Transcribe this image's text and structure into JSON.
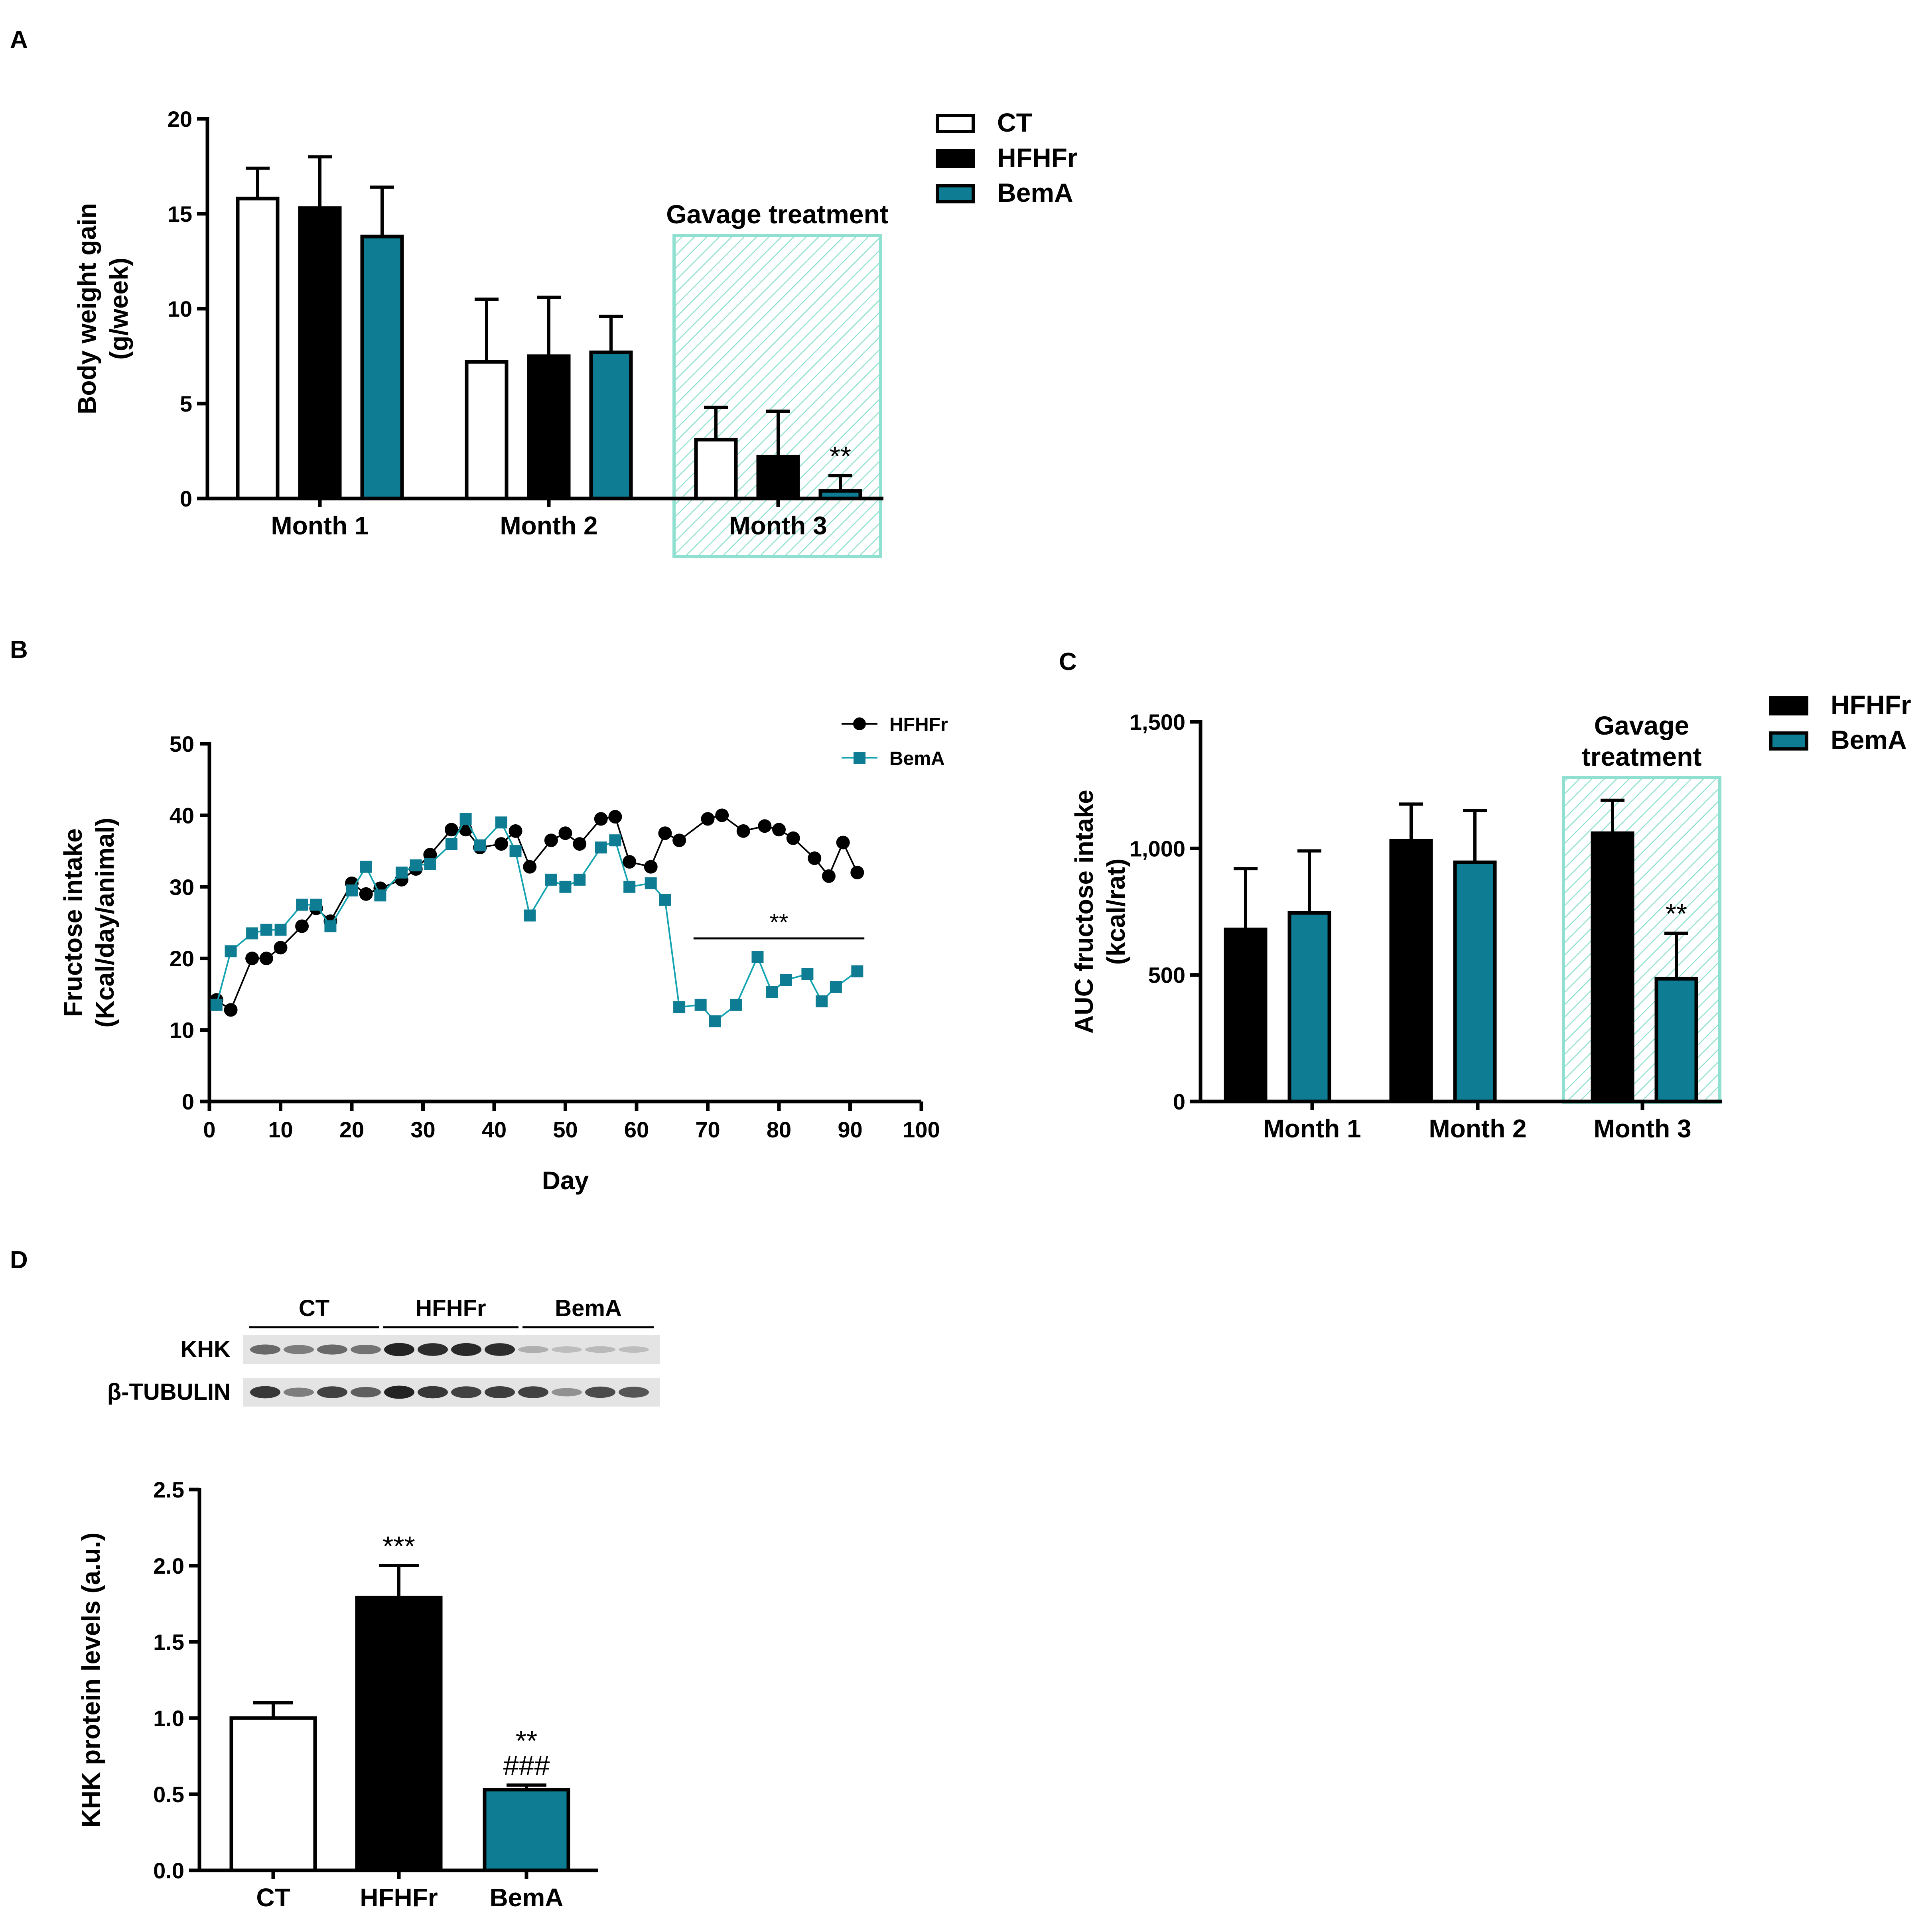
{
  "colors": {
    "ct": "#ffffff",
    "hfhfr": "#000000",
    "bema": "#0e7c92",
    "bema_line": "#14a3b0",
    "hatch": "#8fe0d0"
  },
  "panel_labels": [
    "A",
    "B",
    "C",
    "D"
  ],
  "chart_data": [
    {
      "id": "A",
      "type": "bar",
      "ylabel": [
        "Body weight gain",
        "(g/week)"
      ],
      "ylim": [
        0,
        20
      ],
      "yticks": [
        0,
        5,
        10,
        15,
        20
      ],
      "categories": [
        "Month 1",
        "Month 2",
        "Month 3"
      ],
      "series": [
        {
          "name": "CT",
          "values": [
            15.8,
            7.2,
            3.1
          ],
          "errors": [
            1.6,
            3.3,
            1.7
          ]
        },
        {
          "name": "HFHFr",
          "values": [
            15.3,
            7.5,
            2.2
          ],
          "errors": [
            2.7,
            3.1,
            2.4
          ]
        },
        {
          "name": "BemA",
          "values": [
            13.8,
            7.7,
            0.4
          ],
          "errors": [
            2.6,
            1.9,
            0.8
          ]
        }
      ],
      "significance": [
        {
          "series": 2,
          "category": 2,
          "text": "**"
        }
      ],
      "highlight": {
        "category": 2,
        "label": "Gavage treatment"
      },
      "legend": "top-right"
    },
    {
      "id": "B",
      "type": "line",
      "xlabel": "Day",
      "ylabel": [
        "Fructose intake",
        "(Kcal/day/animal)"
      ],
      "xlim": [
        0,
        100
      ],
      "ylim": [
        0,
        50
      ],
      "xticks": [
        0,
        10,
        20,
        30,
        40,
        50,
        60,
        70,
        80,
        90,
        100
      ],
      "yticks": [
        0,
        10,
        20,
        30,
        40,
        50
      ],
      "series": [
        {
          "name": "HFHFr",
          "marker": "circle",
          "x": [
            1,
            3,
            6,
            8,
            10,
            13,
            15,
            17,
            20,
            22,
            24,
            27,
            29,
            31,
            34,
            36,
            38,
            41,
            43,
            45,
            48,
            50,
            52,
            55,
            57,
            59,
            62,
            64,
            66,
            70,
            72,
            75,
            78,
            80,
            82,
            85,
            87,
            89,
            91
          ],
          "y": [
            14.2,
            12.8,
            20.0,
            20.0,
            21.5,
            24.5,
            27.0,
            25.2,
            30.5,
            29.0,
            29.8,
            31.0,
            32.5,
            34.5,
            38.0,
            38.0,
            35.5,
            36.0,
            37.8,
            32.8,
            36.5,
            37.5,
            36.0,
            39.5,
            39.8,
            33.5,
            32.8,
            37.5,
            36.5,
            39.5,
            40.0,
            37.8,
            38.5,
            38.0,
            36.8,
            34.0,
            31.5,
            36.2,
            32.0
          ]
        },
        {
          "name": "BemA",
          "marker": "square",
          "x": [
            1,
            3,
            6,
            8,
            10,
            13,
            15,
            17,
            20,
            22,
            24,
            27,
            29,
            31,
            34,
            36,
            38,
            41,
            43,
            45,
            48,
            50,
            52,
            55,
            57,
            59,
            62,
            64,
            66,
            69,
            71,
            74,
            77,
            79,
            81,
            84,
            86,
            88,
            91
          ],
          "y": [
            13.5,
            21.0,
            23.5,
            24.0,
            24.0,
            27.5,
            27.5,
            24.5,
            29.5,
            32.8,
            28.8,
            32.0,
            33.0,
            33.2,
            36.0,
            39.5,
            35.8,
            39.0,
            35.0,
            26.0,
            31.0,
            30.0,
            31.0,
            35.5,
            36.5,
            30.0,
            30.5,
            28.2,
            13.2,
            13.5,
            11.2,
            13.5,
            20.2,
            15.3,
            17.0,
            17.8,
            14.0,
            16.0,
            18.2
          ]
        }
      ],
      "significance": {
        "text": "**",
        "x_range": [
          68,
          92
        ],
        "y": 22.8
      },
      "legend": "top-right"
    },
    {
      "id": "C",
      "type": "bar",
      "ylabel": [
        "AUC fructose intake",
        "(kcal/rat)"
      ],
      "ylim": [
        0,
        1500
      ],
      "yticks": [
        0,
        500,
        1000,
        1500
      ],
      "ytick_labels": [
        "0",
        "500",
        "1,000",
        "1,500"
      ],
      "categories": [
        "Month 1",
        "Month 2",
        "Month 3"
      ],
      "series": [
        {
          "name": "HFHFr",
          "values": [
            680,
            1030,
            1060
          ],
          "errors": [
            240,
            145,
            130
          ]
        },
        {
          "name": "BemA",
          "values": [
            745,
            945,
            485
          ],
          "errors": [
            245,
            205,
            180
          ]
        }
      ],
      "significance": [
        {
          "series": 1,
          "category": 2,
          "text": "**"
        }
      ],
      "highlight": {
        "category": 2,
        "label": [
          "Gavage",
          "treatment"
        ]
      },
      "legend": "top-right"
    },
    {
      "id": "D",
      "type": "bar",
      "ylabel": [
        "KHK protein levels (a.u.)"
      ],
      "ylim": [
        0,
        2.5
      ],
      "yticks": [
        0,
        0.5,
        1.0,
        1.5,
        2.0,
        2.5
      ],
      "ytick_labels": [
        "0.0",
        "0.5",
        "1.0",
        "1.5",
        "2.0",
        "2.5"
      ],
      "categories": [
        "CT",
        "HFHFr",
        "BemA"
      ],
      "values": [
        1.0,
        1.79,
        0.53
      ],
      "errors": [
        0.1,
        0.21,
        0.03
      ],
      "significance": [
        {
          "category": 1,
          "text": [
            "***"
          ]
        },
        {
          "category": 2,
          "text": [
            "**",
            "###"
          ]
        }
      ]
    }
  ],
  "blot": {
    "groups": [
      "CT",
      "HFHFr",
      "BemA"
    ],
    "rows": [
      {
        "label": "KHK",
        "intensity": [
          0.6,
          0.5,
          0.6,
          0.55,
          0.95,
          0.9,
          0.92,
          0.9,
          0.25,
          0.18,
          0.2,
          0.18
        ]
      },
      {
        "label": "β-TUBULIN",
        "intensity": [
          0.85,
          0.5,
          0.8,
          0.65,
          0.95,
          0.85,
          0.8,
          0.82,
          0.8,
          0.4,
          0.75,
          0.7
        ]
      }
    ]
  }
}
